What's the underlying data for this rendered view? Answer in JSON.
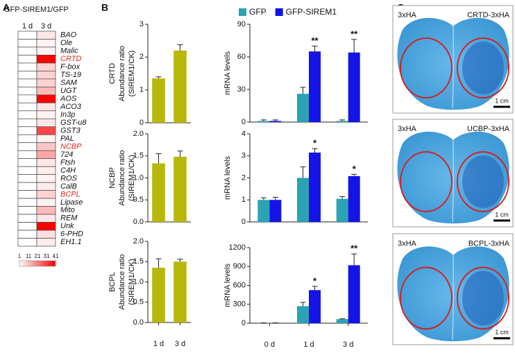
{
  "panel_labels": [
    "A",
    "B",
    "C"
  ],
  "chart_data": [
    {
      "type": "heatmap",
      "title": "GFP-SIREM1/GFP",
      "columns": [
        "1 d",
        "3 d"
      ],
      "rows": [
        "BAO",
        "Ole",
        "Malic",
        "CRTD",
        "F-box",
        "TS-19",
        "SAM",
        "UGT",
        "AOS",
        "ACO3",
        "In3p",
        "GST-u8",
        "GST3",
        "PAL",
        "NCBP",
        "724",
        "Ftsh",
        "C4H",
        "ROS",
        "CalB",
        "BCPL",
        "Lipase",
        "Mito",
        "REM",
        "Unk",
        "6-PHD",
        "EH1.1"
      ],
      "values": [
        [
          1,
          5
        ],
        [
          1,
          3
        ],
        [
          1,
          3
        ],
        [
          1,
          41
        ],
        [
          1,
          8
        ],
        [
          1,
          8
        ],
        [
          1,
          8
        ],
        [
          1,
          12
        ],
        [
          1,
          41
        ],
        [
          1,
          5
        ],
        [
          1,
          3
        ],
        [
          1,
          5
        ],
        [
          1,
          30
        ],
        [
          1,
          3
        ],
        [
          1,
          10
        ],
        [
          1,
          15
        ],
        [
          1,
          5
        ],
        [
          1,
          4
        ],
        [
          1,
          3
        ],
        [
          1,
          4
        ],
        [
          1,
          8
        ],
        [
          1,
          3
        ],
        [
          1,
          12
        ],
        [
          1,
          5
        ],
        [
          1,
          41
        ],
        [
          1,
          6
        ],
        [
          1,
          4
        ]
      ],
      "zlim": [
        1,
        41
      ],
      "zticks": [
        1,
        11,
        21,
        31,
        41
      ],
      "low_color": "#ffffff",
      "high_color": "#ff0000",
      "highlight_rows": [
        3,
        14,
        20
      ],
      "highlight_color": "#e8271f"
    },
    {
      "type": "bar",
      "ylabel": [
        "CRTD",
        "Abundance ratio",
        "(SIREM1/CK)"
      ],
      "values": [
        1.35,
        2.2
      ],
      "errors": [
        0.05,
        0.18
      ],
      "color": "#b8b80b",
      "ylim": [
        0,
        3
      ],
      "yticks": [
        0,
        1,
        2,
        3
      ]
    },
    {
      "type": "bar",
      "ylabel": [
        "NCBP",
        "Abundance ratio",
        "(SIREM1/CK)"
      ],
      "values": [
        1.33,
        1.48
      ],
      "errors": [
        0.22,
        0.13
      ],
      "color": "#b8b80b",
      "ylim": [
        0,
        2
      ],
      "yticks": [
        {
          "value": 0,
          "label": "0.0"
        },
        {
          "value": 0.5,
          "label": "0.5"
        },
        {
          "value": 1,
          "label": "1.0"
        },
        {
          "value": 1.5,
          "label": "1.5"
        },
        {
          "value": 2,
          "label": "2.0"
        }
      ]
    },
    {
      "type": "bar",
      "ylabel": [
        "BCPL",
        "Abundance ratio",
        "(SIREM1/CK)"
      ],
      "categories": [
        "1 d",
        "3 d"
      ],
      "values": [
        1.35,
        1.5
      ],
      "errors": [
        0.22,
        0.06
      ],
      "color": "#b8b80b",
      "ylim": [
        0,
        2
      ],
      "yticks": [
        {
          "value": 0,
          "label": "0.0"
        },
        {
          "value": 0.5,
          "label": "0.5"
        },
        {
          "value": 1,
          "label": "1.0"
        },
        {
          "value": 1.5,
          "label": "1.5"
        },
        {
          "value": 2,
          "label": "2.0"
        }
      ]
    },
    {
      "type": "bar",
      "ylabel": [
        "mRNA levels"
      ],
      "legend": "top",
      "ylim": [
        0,
        90
      ],
      "yticks": [
        0,
        30,
        60,
        90
      ],
      "series": [
        {
          "name": "GFP",
          "color": "#2ba3b3",
          "values": [
            1,
            26,
            1
          ],
          "errors": [
            1,
            6,
            1
          ]
        },
        {
          "name": "GFP-SIREM1",
          "color": "#1414e6",
          "values": [
            1,
            65,
            64
          ],
          "errors": [
            1,
            5,
            12
          ],
          "significance": [
            null,
            "**",
            "**"
          ]
        }
      ]
    },
    {
      "type": "bar",
      "ylabel": [
        "mRNA levels"
      ],
      "ylim": [
        0,
        4
      ],
      "yticks": [
        0,
        1,
        2,
        3,
        4
      ],
      "series": [
        {
          "color": "#2ba3b3",
          "values": [
            1.0,
            2.0,
            1.05
          ],
          "errors": [
            0.1,
            0.5,
            0.1
          ]
        },
        {
          "color": "#1414e6",
          "values": [
            1.0,
            3.15,
            2.08
          ],
          "errors": [
            0.12,
            0.18,
            0.08
          ],
          "significance": [
            null,
            "*",
            "*"
          ]
        }
      ]
    },
    {
      "type": "bar",
      "ylabel": [
        "mRNA levels"
      ],
      "categories": [
        "0 d",
        "1 d",
        "3 d"
      ],
      "ylim": [
        0,
        1200
      ],
      "yticks": [
        0,
        300,
        600,
        900,
        1200
      ],
      "series": [
        {
          "color": "#2ba3b3",
          "values": [
            3,
            270,
            65
          ],
          "errors": [
            2,
            60,
            5
          ]
        },
        {
          "color": "#1414e6",
          "values": [
            3,
            525,
            920
          ],
          "errors": [
            2,
            60,
            180
          ],
          "significance": [
            null,
            "*",
            "**"
          ]
        }
      ]
    }
  ],
  "leaves": [
    {
      "control": "3xHA",
      "construct": "CRTD-3xHA",
      "scale": "1 cm"
    },
    {
      "control": "3xHA",
      "construct": "UCBP-3xHA",
      "scale": "1 cm"
    },
    {
      "control": "3xHA",
      "construct": "BCPL-3xHA",
      "scale": "1 cm"
    }
  ]
}
